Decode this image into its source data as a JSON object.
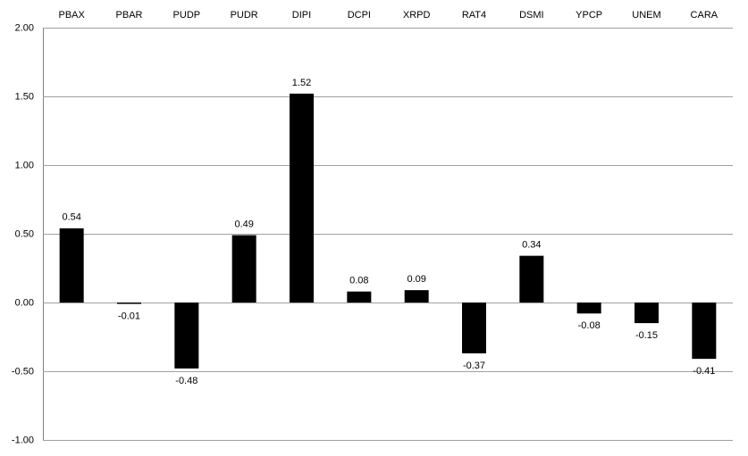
{
  "chart_data": {
    "type": "bar",
    "categories": [
      "PBAX",
      "PBAR",
      "PUDP",
      "PUDR",
      "DIPI",
      "DCPI",
      "XRPD",
      "RAT4",
      "DSMI",
      "YPCP",
      "UNEM",
      "CARA"
    ],
    "values": [
      0.54,
      -0.01,
      -0.48,
      0.49,
      1.52,
      0.08,
      0.09,
      -0.37,
      0.34,
      -0.08,
      -0.15,
      -0.41
    ],
    "color": "#000000",
    "ylim": [
      -1,
      2
    ],
    "yticks": [
      {
        "value": -1,
        "label": "-1.00"
      },
      {
        "value": -0.5,
        "label": "-0.50"
      },
      {
        "value": 0,
        "label": "0.00"
      },
      {
        "value": 0.5,
        "label": "0.50"
      },
      {
        "value": 1,
        "label": "1.00"
      },
      {
        "value": 1.5,
        "label": "1.50"
      },
      {
        "value": 2,
        "label": "2.00"
      }
    ],
    "grid": true
  }
}
